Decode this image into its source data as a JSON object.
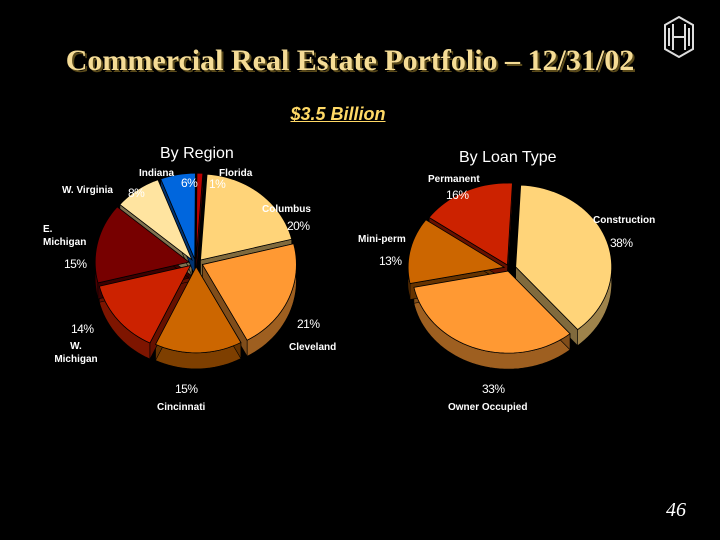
{
  "title": "Commercial Real Estate Portfolio – 12/31/02",
  "subtitle": "$3.5 Billion",
  "page_number": "46",
  "logo": "huntington-logo-icon",
  "chart_data": [
    {
      "type": "pie",
      "title": "By Region",
      "slices": [
        {
          "label": "Columbus",
          "value": 20,
          "value_label": "20%",
          "color": "#ffd479"
        },
        {
          "label": "Cleveland",
          "value": 21,
          "value_label": "21%",
          "color": "#ff9933"
        },
        {
          "label": "Cincinnati",
          "value": 15,
          "value_label": "15%",
          "color": "#cc6600"
        },
        {
          "label": "W. Michigan",
          "value": 14,
          "value_label": "14%",
          "color": "#cc2200"
        },
        {
          "label": "E. Michigan",
          "value": 15,
          "value_label": "15%",
          "color": "#770000"
        },
        {
          "label": "W. Virginia",
          "value": 8,
          "value_label": "8%",
          "color": "#ffe4a0"
        },
        {
          "label": "Indiana",
          "value": 6,
          "value_label": "6%",
          "color": "#0066dd"
        },
        {
          "label": "Florida",
          "value": 1,
          "value_label": "1%",
          "color": "#bb0000"
        }
      ]
    },
    {
      "type": "pie",
      "title": "By Loan Type",
      "slices": [
        {
          "label": "Construction",
          "value": 38,
          "value_label": "38%",
          "color": "#ffd479"
        },
        {
          "label": "Owner Occupied",
          "value": 33,
          "value_label": "33%",
          "color": "#ff9933"
        },
        {
          "label": "Mini-perm",
          "value": 13,
          "value_label": "13%",
          "color": "#cc6600"
        },
        {
          "label": "Permanent",
          "value": 16,
          "value_label": "16%",
          "color": "#cc2200"
        }
      ]
    }
  ]
}
